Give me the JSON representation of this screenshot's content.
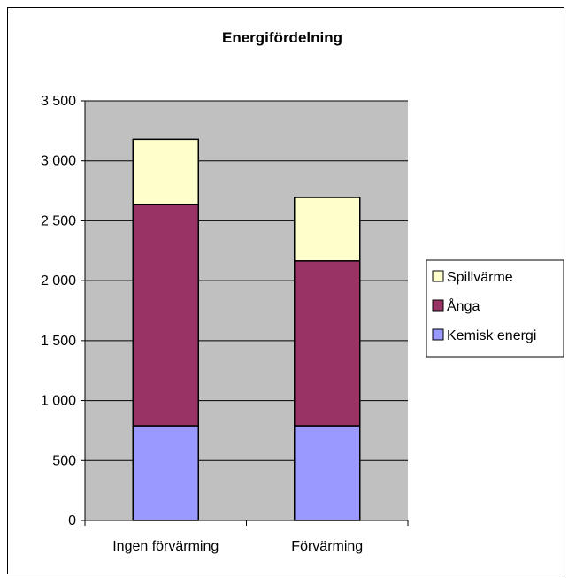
{
  "chart_data": {
    "type": "bar",
    "stacked": true,
    "title": "Energifördelning",
    "xlabel": "",
    "ylabel": "",
    "categories": [
      "Ingen förvärming",
      "Förvärming"
    ],
    "series": [
      {
        "name": "Kemisk energi",
        "values": [
          790,
          790
        ],
        "color": "#9999ff"
      },
      {
        "name": "Ånga",
        "values": [
          1845,
          1375
        ],
        "color": "#993366"
      },
      {
        "name": "Spillvärme",
        "values": [
          545,
          530
        ],
        "color": "#ffffcc"
      }
    ],
    "ylim": [
      0,
      3500
    ],
    "yticks": [
      0,
      500,
      1000,
      1500,
      2000,
      2500,
      3000,
      3500
    ],
    "ytick_labels": [
      "0",
      "500",
      "1 000",
      "1 500",
      "2 000",
      "2 500",
      "3 000",
      "3 500"
    ],
    "legend_order": [
      2,
      1,
      0
    ],
    "legend_position": "right",
    "grid": true,
    "plot_background": "#c0c0c0"
  }
}
